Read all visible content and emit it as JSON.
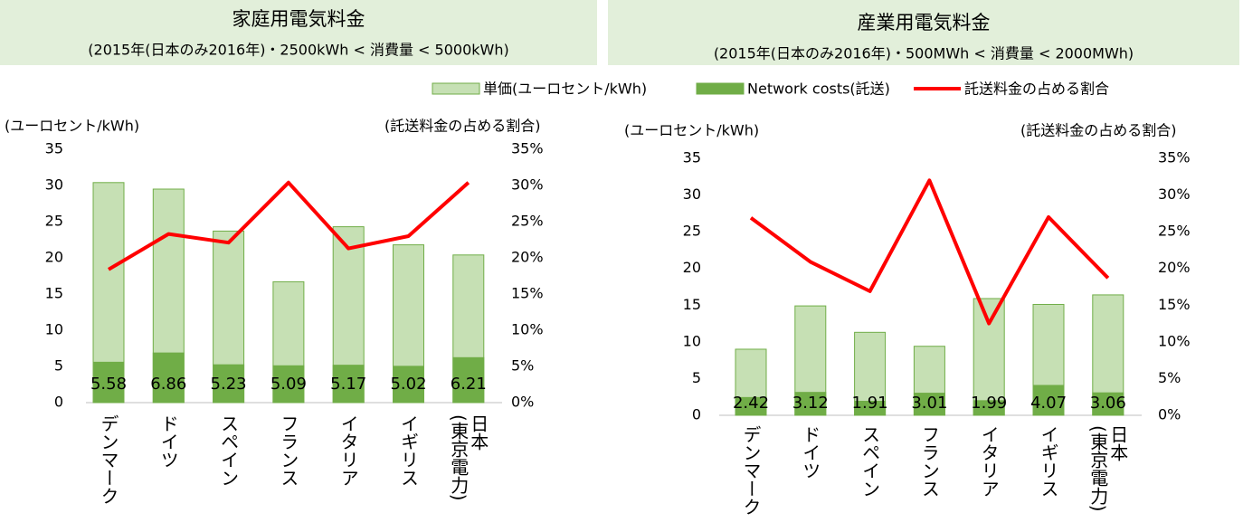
{
  "chart_data": [
    {
      "type": "bar",
      "title": "家庭用電気料金",
      "subtitle": "(2015年(日本のみ2016年)・2500kWh < 消費量 < 5000kWh)",
      "ylabel": "(ユーロセント/kWh)",
      "y2label": "(託送料金の占める割合)",
      "categories": [
        "デンマーク",
        "ドイツ",
        "スペイン",
        "フランス",
        "イタリア",
        "イギリス",
        "日本\n(東京電力)"
      ],
      "series": [
        {
          "name": "単価(ユーロセント/kWh)",
          "type": "bar",
          "color": "#c6e0b4",
          "values": [
            30.4,
            29.5,
            23.7,
            16.7,
            24.3,
            21.8,
            20.4
          ]
        },
        {
          "name": "Network costs(託送)",
          "type": "bar",
          "color": "#70ad47",
          "values": [
            5.58,
            6.86,
            5.23,
            5.09,
            5.17,
            5.02,
            6.21
          ]
        },
        {
          "name": "託送料金の占める割合",
          "type": "line",
          "axis": "y2",
          "color": "#ff0000",
          "values": [
            18.4,
            23.3,
            22.1,
            30.4,
            21.3,
            23.0,
            30.4
          ]
        }
      ],
      "ylim": [
        0,
        35
      ],
      "yticks": [
        0,
        5,
        10,
        15,
        20,
        25,
        30,
        35
      ],
      "y2lim": [
        0,
        35
      ],
      "y2ticks": [
        {
          "value": 0,
          "label": "0%"
        },
        {
          "value": 5,
          "label": "5%"
        },
        {
          "value": 10,
          "label": "10%"
        },
        {
          "value": 15,
          "label": "15%"
        },
        {
          "value": 20,
          "label": "20%"
        },
        {
          "value": 25,
          "label": "25%"
        },
        {
          "value": 30,
          "label": "30%"
        },
        {
          "value": 35,
          "label": "35%"
        }
      ],
      "grid": false
    },
    {
      "type": "bar",
      "title": "産業用電気料金",
      "subtitle": "(2015年(日本のみ2016年)・500MWh < 消費量 < 2000MWh)",
      "ylabel": "(ユーロセント/kWh)",
      "y2label": "(託送料金の占める割合)",
      "categories": [
        "デンマーク",
        "ドイツ",
        "スペイン",
        "フランス",
        "イタリア",
        "イギリス",
        "日本\n(東京電力)"
      ],
      "series": [
        {
          "type": "bar",
          "color": "#c6e0b4",
          "values": [
            9.0,
            14.9,
            11.3,
            9.4,
            15.9,
            15.1,
            16.4
          ]
        },
        {
          "type": "bar",
          "color": "#70ad47",
          "values": [
            2.42,
            3.12,
            1.91,
            3.01,
            1.99,
            4.07,
            3.06
          ]
        },
        {
          "type": "line",
          "axis": "y2",
          "color": "#ff0000",
          "values": [
            26.9,
            20.9,
            16.9,
            32.0,
            12.5,
            27.0,
            18.7
          ]
        }
      ],
      "ylim": [
        0,
        35
      ],
      "yticks": [
        0,
        5,
        10,
        15,
        20,
        25,
        30,
        35
      ],
      "y2lim": [
        0,
        35
      ],
      "y2ticks": [
        {
          "value": 0,
          "label": "0%"
        },
        {
          "value": 5,
          "label": "5%"
        },
        {
          "value": 10,
          "label": "10%"
        },
        {
          "value": 15,
          "label": "15%"
        },
        {
          "value": 20,
          "label": "20%"
        },
        {
          "value": 25,
          "label": "25%"
        },
        {
          "value": 30,
          "label": "30%"
        },
        {
          "value": 35,
          "label": "35%"
        }
      ],
      "grid": false
    }
  ]
}
